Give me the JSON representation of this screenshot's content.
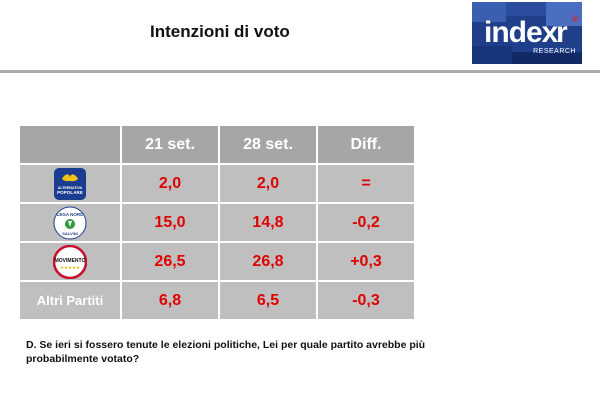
{
  "header": {
    "title": "Intenzioni di voto",
    "logo_word": "index",
    "logo_letter": "r",
    "logo_sub": "RESEARCH",
    "logo_reg": "®"
  },
  "table": {
    "columns": [
      "",
      "21 set.",
      "28 set.",
      "Diff."
    ],
    "rows": [
      {
        "party_icon": "alternativa-popolare-logo",
        "logo_text": [
          "ALTERNATIVA",
          "POPOLARE"
        ],
        "values": [
          "2,0",
          "2,0",
          "="
        ]
      },
      {
        "party_icon": "lega-nord-logo",
        "logo_text": [
          "LEGA NORD",
          "SALVINI"
        ],
        "values": [
          "15,0",
          "14,8",
          "-0,2"
        ]
      },
      {
        "party_icon": "movimento-5-stelle-logo",
        "logo_text": [
          "MOVIMENTO",
          "★★★★★"
        ],
        "values": [
          "26,5",
          "26,8",
          "+0,3"
        ]
      },
      {
        "label": "Altri Partiti",
        "values": [
          "6,8",
          "6,5",
          "-0,3"
        ]
      }
    ]
  },
  "question": "D. Se ieri si fossero tenute le elezioni politiche, Lei per quale partito avrebbe più probabilmente votato?",
  "colors": {
    "header_bg": "#a6a6a6",
    "cell_bg": "#bfbfbf",
    "value": "#e00000",
    "logo_blue": "#1a3d8f"
  }
}
